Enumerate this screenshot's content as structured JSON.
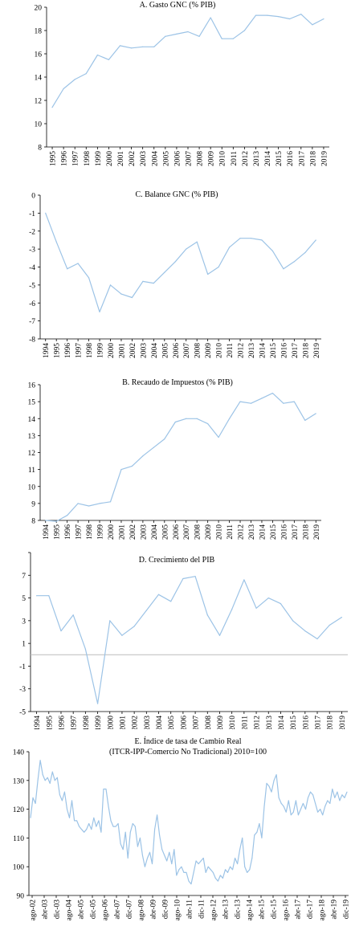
{
  "colors": {
    "line": "#9cc3e6",
    "axis": "#000000",
    "zero_line": "#bbbbbb"
  },
  "chart_data": [
    {
      "id": "A",
      "type": "line",
      "title": "A. Gasto GNC (% PIB)",
      "x": [
        "1995",
        "1996",
        "1997",
        "1998",
        "1999",
        "2000",
        "2001",
        "2002",
        "2003",
        "2004",
        "2005",
        "2006",
        "2007",
        "2008",
        "2009",
        "2010",
        "2011",
        "2012",
        "2013",
        "2014",
        "2015",
        "2016",
        "2017",
        "2018",
        "2019"
      ],
      "values": [
        11.4,
        13.0,
        13.8,
        14.3,
        15.9,
        15.5,
        16.7,
        16.5,
        16.6,
        16.6,
        17.5,
        17.7,
        17.9,
        17.5,
        19.1,
        17.3,
        17.3,
        18.0,
        19.3,
        19.3,
        19.2,
        19.0,
        19.4,
        18.5,
        19.0
      ],
      "ylim": [
        8,
        20
      ],
      "yticks": [
        8,
        10,
        12,
        14,
        16,
        18,
        20
      ],
      "xlabel": "",
      "ylabel": "",
      "grid": false
    },
    {
      "id": "C",
      "type": "line",
      "title": "C. Balance GNC (% PIB)",
      "x": [
        "1994",
        "1995",
        "1996",
        "1997",
        "1998",
        "1999",
        "2000",
        "2001",
        "2002",
        "2003",
        "2004",
        "2005",
        "2006",
        "2007",
        "2008",
        "2009",
        "2010",
        "2011",
        "2012",
        "2013",
        "2014",
        "2015",
        "2016",
        "2017",
        "2018",
        "2019"
      ],
      "values": [
        -1.0,
        -2.6,
        -4.1,
        -3.8,
        -4.6,
        -6.5,
        -5.0,
        -5.5,
        -5.7,
        -4.8,
        -4.9,
        -4.3,
        -3.7,
        -3.0,
        -2.6,
        -4.4,
        -4.0,
        -2.9,
        -2.4,
        -2.4,
        -2.5,
        -3.1,
        -4.1,
        -3.7,
        -3.2,
        -2.5
      ],
      "ylim": [
        -8,
        0
      ],
      "yticks": [
        0,
        -1,
        -2,
        -3,
        -4,
        -5,
        -6,
        -7,
        -8
      ],
      "xlabel": "",
      "ylabel": "",
      "grid": false
    },
    {
      "id": "B",
      "type": "line",
      "title": "B. Recaudo de Impuestos (% PIB)",
      "x": [
        "1994",
        "1995",
        "1996",
        "1997",
        "1998",
        "1999",
        "2000",
        "2001",
        "2002",
        "2003",
        "2004",
        "2005",
        "2006",
        "2007",
        "2008",
        "2009",
        "2010",
        "2011",
        "2012",
        "2013",
        "2014",
        "2015",
        "2016",
        "2017",
        "2018",
        "2019"
      ],
      "values": [
        8.0,
        7.95,
        8.3,
        9.0,
        8.85,
        9.0,
        9.1,
        11.0,
        11.2,
        11.8,
        12.3,
        12.8,
        13.8,
        14.0,
        14.0,
        13.7,
        12.9,
        14.0,
        15.0,
        14.9,
        15.2,
        15.5,
        14.9,
        15.0,
        13.9,
        14.3
      ],
      "ylim": [
        8,
        16
      ],
      "yticks": [
        8,
        9,
        10,
        11,
        12,
        13,
        14,
        15,
        16
      ],
      "xlabel": "",
      "ylabel": "",
      "grid": false
    },
    {
      "id": "D",
      "type": "line",
      "title": "D. Crecimiento del PIB",
      "x": [
        "1994",
        "1995",
        "1996",
        "1997",
        "1998",
        "1999",
        "2000",
        "2001",
        "2002",
        "2003",
        "2004",
        "2005",
        "2006",
        "2007",
        "2008",
        "2009",
        "2010",
        "2011",
        "2012",
        "2013",
        "2014",
        "2015",
        "2016",
        "2017",
        "2018",
        "2019"
      ],
      "values": [
        5.2,
        5.2,
        2.1,
        3.5,
        0.5,
        -4.3,
        3.0,
        1.7,
        2.5,
        3.9,
        5.3,
        4.7,
        6.7,
        6.9,
        3.5,
        1.7,
        4.0,
        6.6,
        4.1,
        5.0,
        4.5,
        3.0,
        2.1,
        1.4,
        2.6,
        3.3
      ],
      "ylim": [
        -5,
        9
      ],
      "yticks": [
        9,
        7,
        5,
        3,
        1,
        -1,
        -3,
        -5
      ],
      "ytick_labels": [
        "",
        "7",
        "5",
        "3",
        "1",
        "-1",
        "-3",
        "-5"
      ],
      "zero_line": true,
      "xlabel": "",
      "ylabel": "",
      "grid": false
    },
    {
      "id": "E",
      "type": "line",
      "title_lines": [
        "E. Índice de tasa de Cambio Real",
        "(ITCR-IPP-Comercio No Tradicional) 2010=100"
      ],
      "x_ticks": [
        "ago-02",
        "abr-03",
        "dic-03",
        "ago-04",
        "abr-05",
        "dic-05",
        "ago-06",
        "abr-07",
        "dic-07",
        "ago-08",
        "abr-09",
        "dic-09",
        "ago-10",
        "abr-11",
        "dic-11",
        "ago-12",
        "abr-13",
        "dic-13",
        "ago-14",
        "abr-15",
        "dic-15",
        "ago-16",
        "abr-17",
        "dic-17",
        "ago-18",
        "abr-19",
        "dic-19"
      ],
      "values": [
        117,
        124,
        122,
        130,
        137,
        132,
        130,
        131,
        129,
        133,
        130,
        131,
        125,
        123,
        126,
        120,
        117,
        123,
        116,
        116,
        114,
        113,
        112,
        113,
        115,
        113,
        117,
        114,
        116,
        112,
        127,
        127,
        121,
        116,
        114,
        114,
        115,
        108,
        106,
        112,
        103,
        112,
        115,
        114,
        107,
        110,
        104,
        100,
        103,
        105,
        101,
        113,
        118,
        111,
        106,
        104,
        102,
        105,
        101,
        106,
        97,
        99,
        100,
        98,
        98,
        95,
        94,
        98,
        102,
        101,
        102,
        103,
        98,
        100,
        99,
        98,
        96,
        95,
        97,
        96,
        99,
        98,
        100,
        99,
        103,
        101,
        106,
        110,
        100,
        98,
        99,
        103,
        111,
        112,
        115,
        110,
        121,
        129,
        128,
        126,
        130,
        132,
        124,
        122,
        121,
        119,
        123,
        118,
        119,
        123,
        118,
        120,
        122,
        120,
        124,
        126,
        125,
        122,
        119,
        120,
        118,
        121,
        123,
        122,
        127,
        124,
        126,
        123,
        125,
        124,
        126
      ],
      "ylim": [
        90,
        140
      ],
      "yticks": [
        140,
        130,
        120,
        110,
        100,
        90
      ],
      "xlabel": "",
      "ylabel": "",
      "grid": false
    }
  ]
}
